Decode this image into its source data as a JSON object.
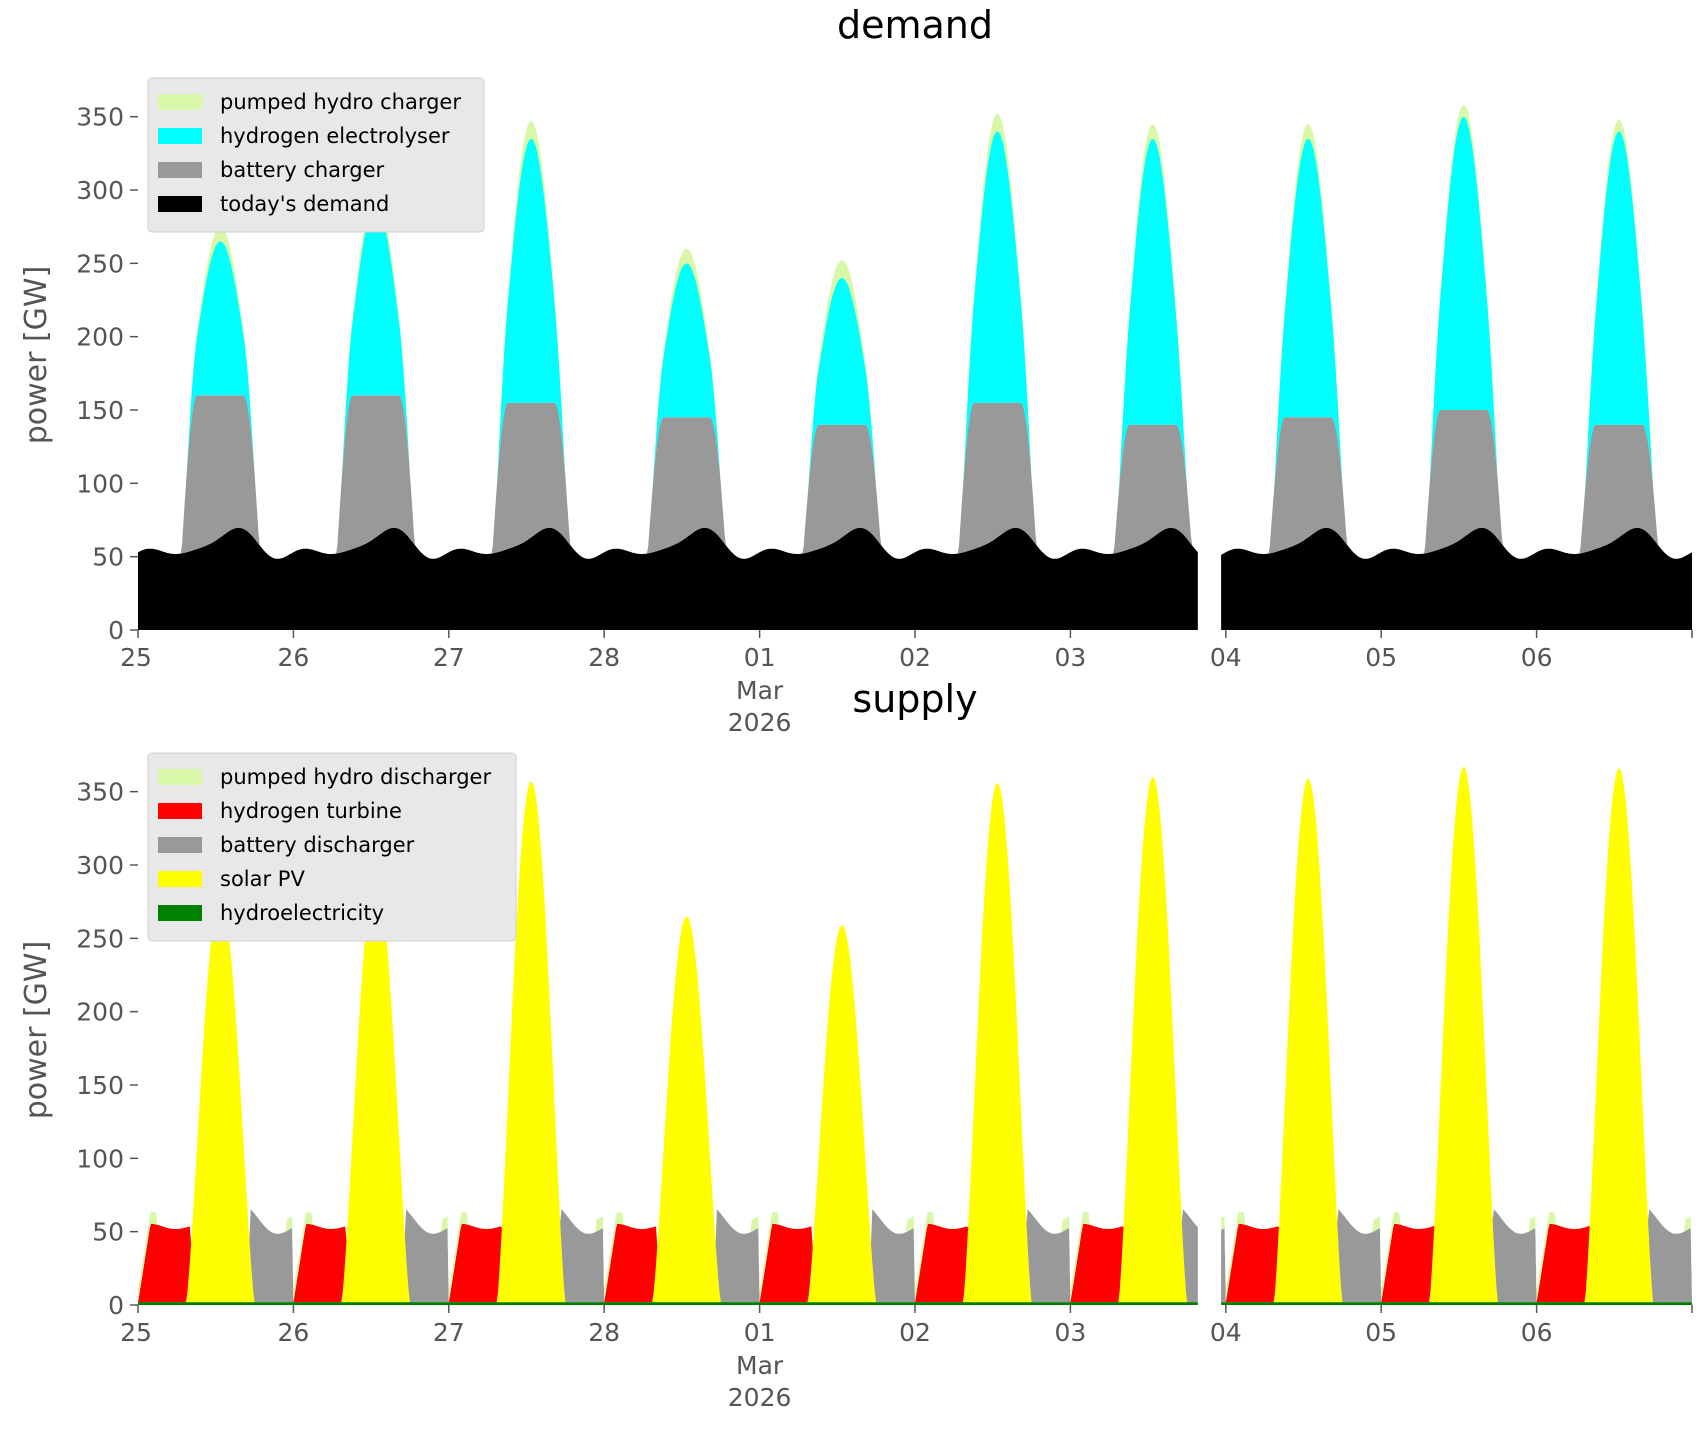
{
  "chart_data": [
    {
      "id": "demand",
      "type": "area",
      "title": "demand",
      "ylabel": "power [GW]",
      "xlabel": "",
      "ylim": [
        0,
        375
      ],
      "yticks": [
        0,
        50,
        100,
        150,
        200,
        250,
        300,
        350
      ],
      "xlim_days": [
        0,
        10
      ],
      "xticks": [
        {
          "day": 0,
          "label": "25"
        },
        {
          "day": 1,
          "label": "26"
        },
        {
          "day": 2,
          "label": "27"
        },
        {
          "day": 3,
          "label": "28"
        },
        {
          "day": 4,
          "label": "01",
          "sub1": "Mar",
          "sub2": "2026"
        },
        {
          "day": 5,
          "label": "02"
        },
        {
          "day": 6,
          "label": "03"
        },
        {
          "day": 7,
          "label": "04"
        },
        {
          "day": 8,
          "label": "05"
        },
        {
          "day": 9,
          "label": "06"
        }
      ],
      "legend_position": "top-left",
      "gaps": [
        [
          6.82,
          6.97
        ]
      ],
      "series": [
        {
          "name": "today's demand",
          "color": "#000000",
          "kind": "baseline"
        },
        {
          "name": "battery charger",
          "color": "#999999",
          "kind": "bump",
          "width": 0.16,
          "values": [
            160,
            160,
            155,
            145,
            140,
            155,
            140,
            145,
            150,
            140
          ]
        },
        {
          "name": "hydrogen electrolyser",
          "color": "#00ffff",
          "kind": "bump",
          "width": 0.15,
          "values": [
            105,
            130,
            180,
            105,
            100,
            185,
            195,
            190,
            200,
            200
          ]
        },
        {
          "name": "pumped hydro charger",
          "color": "#d9f7a8",
          "kind": "bump",
          "width": 0.15,
          "values": [
            10,
            10,
            12,
            10,
            12,
            12,
            10,
            10,
            8,
            8
          ]
        }
      ],
      "legend": [
        "pumped hydro charger",
        "hydrogen electrolyser",
        "battery charger",
        "today's demand"
      ],
      "peaks": [
        278,
        293,
        355,
        263,
        257,
        354,
        358,
        357,
        365,
        364
      ]
    },
    {
      "id": "supply",
      "type": "area",
      "title": "supply",
      "ylabel": "power [GW]",
      "xlabel": "",
      "ylim": [
        0,
        375
      ],
      "yticks": [
        0,
        50,
        100,
        150,
        200,
        250,
        300,
        350
      ],
      "xlim_days": [
        0,
        10
      ],
      "xticks": [
        {
          "day": 0,
          "label": "25"
        },
        {
          "day": 1,
          "label": "26"
        },
        {
          "day": 2,
          "label": "27"
        },
        {
          "day": 3,
          "label": "28"
        },
        {
          "day": 4,
          "label": "01",
          "sub1": "Mar",
          "sub2": "2026"
        },
        {
          "day": 5,
          "label": "02"
        },
        {
          "day": 6,
          "label": "03"
        },
        {
          "day": 7,
          "label": "04"
        },
        {
          "day": 8,
          "label": "05"
        },
        {
          "day": 9,
          "label": "06"
        }
      ],
      "legend_position": "top-left",
      "gaps": [
        [
          6.82,
          6.97
        ]
      ],
      "series": [
        {
          "name": "hydroelectricity",
          "color": "#008000",
          "kind": "constant",
          "value": 2
        },
        {
          "name": "solar PV",
          "color": "#ffff00",
          "kind": "solar",
          "peaks": [
            278,
            293,
            355,
            263,
            257,
            354,
            358,
            357,
            365,
            364
          ]
        },
        {
          "name": "battery discharger",
          "color": "#999999",
          "kind": "evening"
        },
        {
          "name": "hydrogen turbine",
          "color": "#ff0000",
          "kind": "morning"
        },
        {
          "name": "pumped hydro discharger",
          "color": "#d9f7a8",
          "kind": "topup"
        }
      ],
      "legend": [
        "pumped hydro discharger",
        "hydrogen turbine",
        "battery discharger",
        "solar PV",
        "hydroelectricity"
      ]
    }
  ]
}
